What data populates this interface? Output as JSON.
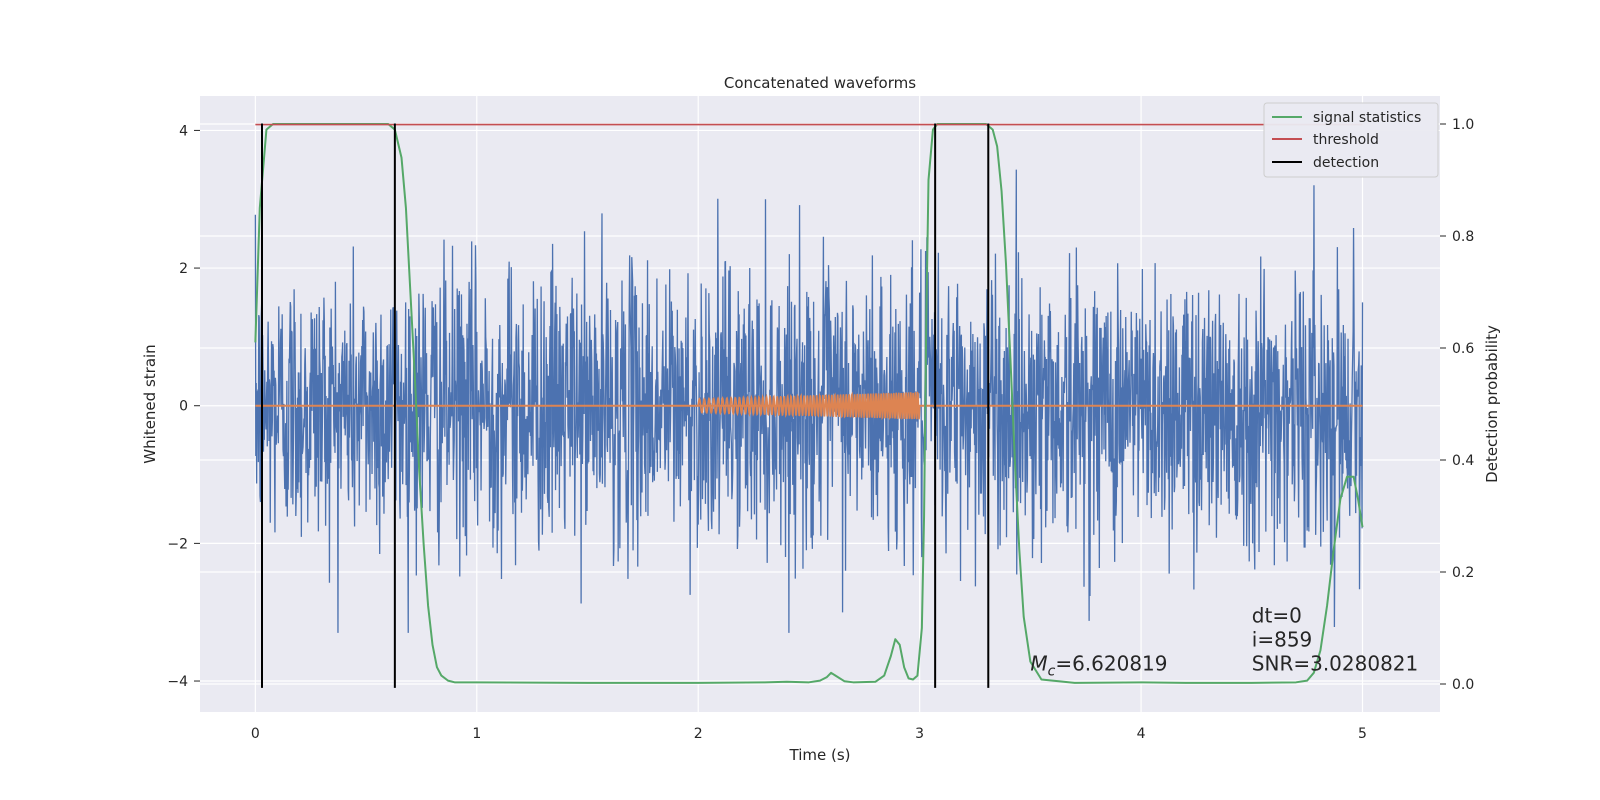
{
  "chart_data": {
    "type": "line",
    "title": "Concatenated waveforms",
    "xlabel": "Time (s)",
    "ylabel": "Whitened strain",
    "ylabel_right": "Detection probability",
    "xlim": [
      -0.25,
      5.35
    ],
    "ylim": [
      -4.45,
      4.5
    ],
    "ylim_right": [
      -0.05,
      1.05
    ],
    "x_ticks": [
      0,
      1,
      2,
      3,
      4,
      5
    ],
    "x_tick_labels": [
      "0",
      "1",
      "2",
      "3",
      "4",
      "5"
    ],
    "y_ticks": [
      -4,
      -2,
      0,
      2,
      4
    ],
    "y_tick_labels": [
      "−4",
      "−2",
      "0",
      "2",
      "4"
    ],
    "y_right_ticks": [
      0.0,
      0.2,
      0.4,
      0.6,
      0.8,
      1.0
    ],
    "y_right_tick_labels": [
      "0.0",
      "0.2",
      "0.4",
      "0.6",
      "0.8",
      "1.0"
    ],
    "grid": true,
    "legend_position": "top-right",
    "legend": [
      {
        "label": "signal statistics",
        "color": "#55a868"
      },
      {
        "label": "threshold",
        "color": "#c44e52"
      },
      {
        "label": "detection",
        "color": "#000000"
      }
    ],
    "strain_noise": {
      "color": "#4c72b0",
      "x_range": [
        0,
        5
      ],
      "typical_amplitude": 1.0,
      "peak_range": [
        -3.3,
        4.05
      ]
    },
    "injected_waveform": {
      "color": "#dd8452",
      "x_range": [
        2.0,
        3.0
      ],
      "amplitude_start": 0.1,
      "amplitude_end": 0.2,
      "baseline": 0
    },
    "signal_statistics": {
      "color": "#55a868",
      "axis": "right",
      "x": [
        0.0,
        0.02,
        0.05,
        0.08,
        0.12,
        0.2,
        0.4,
        0.6,
        0.63,
        0.66,
        0.68,
        0.7,
        0.72,
        0.74,
        0.76,
        0.78,
        0.8,
        0.82,
        0.84,
        0.87,
        0.9,
        1.0,
        1.5,
        2.0,
        2.3,
        2.4,
        2.5,
        2.55,
        2.58,
        2.6,
        2.62,
        2.66,
        2.7,
        2.8,
        2.84,
        2.87,
        2.89,
        2.91,
        2.93,
        2.95,
        2.97,
        2.99,
        3.01,
        3.02,
        3.03,
        3.04,
        3.06,
        3.08,
        3.12,
        3.2,
        3.3,
        3.33,
        3.35,
        3.37,
        3.39,
        3.41,
        3.43,
        3.45,
        3.47,
        3.5,
        3.55,
        3.7,
        4.0,
        4.2,
        4.5,
        4.7,
        4.75,
        4.78,
        4.81,
        4.84,
        4.87,
        4.9,
        4.93,
        4.96,
        4.98,
        5.0
      ],
      "y": [
        0.61,
        0.85,
        0.99,
        1.0,
        1.0,
        1.0,
        1.0,
        1.0,
        0.99,
        0.94,
        0.85,
        0.7,
        0.55,
        0.38,
        0.25,
        0.14,
        0.07,
        0.03,
        0.015,
        0.006,
        0.003,
        0.003,
        0.002,
        0.002,
        0.003,
        0.004,
        0.003,
        0.006,
        0.012,
        0.02,
        0.015,
        0.005,
        0.003,
        0.004,
        0.015,
        0.05,
        0.08,
        0.07,
        0.03,
        0.01,
        0.008,
        0.015,
        0.1,
        0.3,
        0.65,
        0.9,
        0.99,
        1.0,
        1.0,
        1.0,
        1.0,
        0.99,
        0.96,
        0.88,
        0.75,
        0.58,
        0.4,
        0.24,
        0.12,
        0.04,
        0.008,
        0.002,
        0.003,
        0.002,
        0.002,
        0.003,
        0.006,
        0.02,
        0.06,
        0.14,
        0.24,
        0.33,
        0.37,
        0.37,
        0.33,
        0.28
      ]
    },
    "threshold": {
      "color": "#c44e52",
      "axis": "right",
      "value": 0.999,
      "x_range": [
        0,
        5
      ]
    },
    "detections": {
      "color": "#000000",
      "x": [
        0.03,
        0.63,
        3.07,
        3.31
      ],
      "y_range": [
        -4.1,
        4.1
      ]
    },
    "annotations": [
      {
        "text_main": "M",
        "text_sub": "c",
        "text_rest": "=6.620819",
        "x": 3.5,
        "y": -3.85
      },
      {
        "text": "dt=0",
        "x": 4.5,
        "y": -3.15
      },
      {
        "text": "i=859",
        "x": 4.5,
        "y": -3.5
      },
      {
        "text": "SNR=3.0280821",
        "x": 4.5,
        "y": -3.85
      }
    ]
  }
}
